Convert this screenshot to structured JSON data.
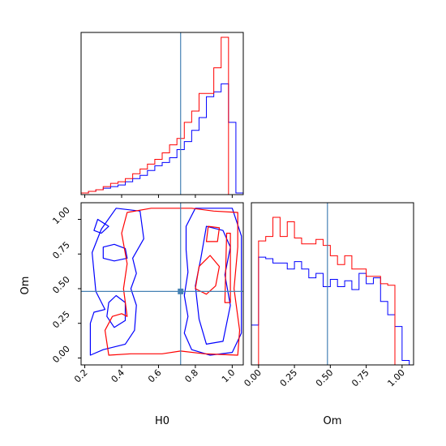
{
  "chart_data": [
    {
      "type": "histogram",
      "panel": "marginal-H0",
      "parameter": "H0",
      "xlim": [
        0.18,
        1.06
      ],
      "truth": 0.72,
      "series": [
        {
          "color": "#0000ff",
          "bins": [
            0.18,
            0.22,
            0.26,
            0.3,
            0.34,
            0.38,
            0.42,
            0.46,
            0.5,
            0.54,
            0.58,
            0.62,
            0.66,
            0.7,
            0.74,
            0.78,
            0.82,
            0.86,
            0.9,
            0.94,
            0.98,
            1.02,
            1.06
          ],
          "values": [
            0.01,
            0.02,
            0.03,
            0.04,
            0.05,
            0.06,
            0.08,
            0.1,
            0.12,
            0.15,
            0.18,
            0.2,
            0.23,
            0.28,
            0.33,
            0.4,
            0.48,
            0.61,
            0.64,
            0.69,
            0.45,
            0.01
          ]
        },
        {
          "color": "#ff0000",
          "bins": [
            0.18,
            0.22,
            0.26,
            0.3,
            0.34,
            0.38,
            0.42,
            0.46,
            0.5,
            0.54,
            0.58,
            0.62,
            0.66,
            0.7,
            0.74,
            0.78,
            0.82,
            0.86,
            0.9,
            0.94,
            0.98,
            1.02,
            1.06
          ],
          "values": [
            0.01,
            0.02,
            0.03,
            0.05,
            0.07,
            0.08,
            0.1,
            0.13,
            0.16,
            0.19,
            0.22,
            0.26,
            0.31,
            0.35,
            0.45,
            0.52,
            0.63,
            0.63,
            0.79,
            0.98,
            0,
            0
          ]
        }
      ]
    },
    {
      "type": "contour",
      "panel": "joint-H0-Om",
      "xlim": [
        0.18,
        1.06
      ],
      "ylim": [
        -0.05,
        1.12
      ],
      "truth": {
        "x": 0.72,
        "y": 0.48
      },
      "xticks": [
        "0.2",
        "0.4",
        "0.6",
        "0.8",
        "1.0"
      ],
      "yticks": [
        "0.00",
        "0.25",
        "0.50",
        "0.75",
        "1.00"
      ],
      "xlabel": "H0",
      "ylabel": "Om",
      "series": [
        {
          "color": "#0000ff",
          "contours": [
            [
              [
                0.23,
                0.02
              ],
              [
                0.23,
                0.25
              ],
              [
                0.25,
                0.33
              ],
              [
                0.31,
                0.35
              ],
              [
                0.26,
                0.48
              ],
              [
                0.24,
                0.76
              ],
              [
                0.29,
                0.93
              ],
              [
                0.37,
                1.08
              ],
              [
                0.5,
                1.06
              ],
              [
                0.52,
                0.86
              ],
              [
                0.46,
                0.72
              ],
              [
                0.48,
                0.61
              ],
              [
                0.45,
                0.5
              ],
              [
                0.48,
                0.38
              ],
              [
                0.47,
                0.2
              ],
              [
                0.42,
                0.1
              ],
              [
                0.3,
                0.06
              ],
              [
                0.23,
                0.02
              ]
            ],
            [
              [
                0.3,
                0.72
              ],
              [
                0.3,
                0.8
              ],
              [
                0.36,
                0.82
              ],
              [
                0.42,
                0.79
              ],
              [
                0.43,
                0.72
              ],
              [
                0.36,
                0.7
              ],
              [
                0.3,
                0.72
              ]
            ],
            [
              [
                0.25,
                0.92
              ],
              [
                0.27,
                1.0
              ],
              [
                0.33,
                0.95
              ],
              [
                0.29,
                0.9
              ],
              [
                0.25,
                0.92
              ]
            ],
            [
              [
                0.32,
                0.3
              ],
              [
                0.33,
                0.4
              ],
              [
                0.37,
                0.45
              ],
              [
                0.42,
                0.4
              ],
              [
                0.42,
                0.27
              ],
              [
                0.36,
                0.22
              ],
              [
                0.32,
                0.3
              ]
            ],
            [
              [
                0.75,
                0.78
              ],
              [
                0.75,
                0.95
              ],
              [
                0.8,
                1.08
              ],
              [
                1.0,
                1.08
              ],
              [
                1.05,
                0.88
              ],
              [
                1.05,
                0.18
              ],
              [
                1.0,
                0.04
              ],
              [
                0.88,
                0.02
              ],
              [
                0.78,
                0.06
              ],
              [
                0.74,
                0.18
              ],
              [
                0.76,
                0.3
              ],
              [
                0.74,
                0.45
              ],
              [
                0.76,
                0.62
              ],
              [
                0.75,
                0.78
              ]
            ],
            [
              [
                0.82,
                0.28
              ],
              [
                0.8,
                0.52
              ],
              [
                0.83,
                0.72
              ],
              [
                0.86,
                0.95
              ],
              [
                0.95,
                0.92
              ],
              [
                0.99,
                0.8
              ],
              [
                0.96,
                0.6
              ],
              [
                0.99,
                0.38
              ],
              [
                0.95,
                0.12
              ],
              [
                0.86,
                0.1
              ],
              [
                0.82,
                0.28
              ]
            ]
          ]
        },
        {
          "color": "#ff0000",
          "contours": [
            [
              [
                0.33,
                0.02
              ],
              [
                0.31,
                0.2
              ],
              [
                0.35,
                0.3
              ],
              [
                0.4,
                0.32
              ],
              [
                0.43,
                0.3
              ],
              [
                0.41,
                0.5
              ],
              [
                0.43,
                0.68
              ],
              [
                0.4,
                0.9
              ],
              [
                0.43,
                1.05
              ],
              [
                0.56,
                1.08
              ],
              [
                0.78,
                1.08
              ],
              [
                0.9,
                1.06
              ],
              [
                1.03,
                1.05
              ],
              [
                1.03,
                0.8
              ],
              [
                1.01,
                0.5
              ],
              [
                1.04,
                0.2
              ],
              [
                1.03,
                0.02
              ],
              [
                0.85,
                0.03
              ],
              [
                0.72,
                0.05
              ],
              [
                0.62,
                0.03
              ],
              [
                0.45,
                0.03
              ],
              [
                0.33,
                0.02
              ]
            ],
            [
              [
                0.8,
                0.5
              ],
              [
                0.82,
                0.66
              ],
              [
                0.88,
                0.74
              ],
              [
                0.93,
                0.66
              ],
              [
                0.91,
                0.52
              ],
              [
                0.86,
                0.46
              ],
              [
                0.8,
                0.5
              ]
            ],
            [
              [
                0.86,
                0.84
              ],
              [
                0.87,
                0.95
              ],
              [
                0.93,
                0.94
              ],
              [
                0.92,
                0.84
              ],
              [
                0.86,
                0.84
              ]
            ],
            [
              [
                0.96,
                0.4
              ],
              [
                0.97,
                0.9
              ],
              [
                0.99,
                0.9
              ],
              [
                0.99,
                0.4
              ],
              [
                0.96,
                0.4
              ]
            ]
          ]
        }
      ]
    },
    {
      "type": "histogram",
      "panel": "marginal-Om",
      "parameter": "Om",
      "xlim": [
        -0.05,
        1.08
      ],
      "truth": 0.48,
      "xticks": [
        "0.00",
        "0.25",
        "0.50",
        "0.75",
        "1.00"
      ],
      "xlabel": "Om",
      "series": [
        {
          "color": "#0000ff",
          "bins": [
            -0.05,
            0.0,
            0.05,
            0.1,
            0.15,
            0.2,
            0.25,
            0.3,
            0.35,
            0.4,
            0.45,
            0.5,
            0.55,
            0.6,
            0.65,
            0.7,
            0.75,
            0.8,
            0.85,
            0.9,
            0.95,
            1.0,
            1.05
          ],
          "values": [
            0.27,
            0.73,
            0.72,
            0.69,
            0.69,
            0.65,
            0.7,
            0.65,
            0.59,
            0.62,
            0.53,
            0.58,
            0.53,
            0.57,
            0.51,
            0.62,
            0.55,
            0.59,
            0.43,
            0.34,
            0.26,
            0.03
          ]
        },
        {
          "color": "#ff0000",
          "bins": [
            -0.05,
            0.0,
            0.05,
            0.1,
            0.15,
            0.2,
            0.25,
            0.3,
            0.35,
            0.4,
            0.45,
            0.5,
            0.55,
            0.6,
            0.65,
            0.7,
            0.75,
            0.8,
            0.85,
            0.9,
            0.95,
            1.0,
            1.05
          ],
          "values": [
            0,
            0.84,
            0.87,
            1.0,
            0.87,
            0.97,
            0.86,
            0.82,
            0.82,
            0.85,
            0.81,
            0.74,
            0.68,
            0.74,
            0.65,
            0.65,
            0.6,
            0.6,
            0.55,
            0.54,
            0.0,
            0.0
          ]
        }
      ]
    }
  ]
}
